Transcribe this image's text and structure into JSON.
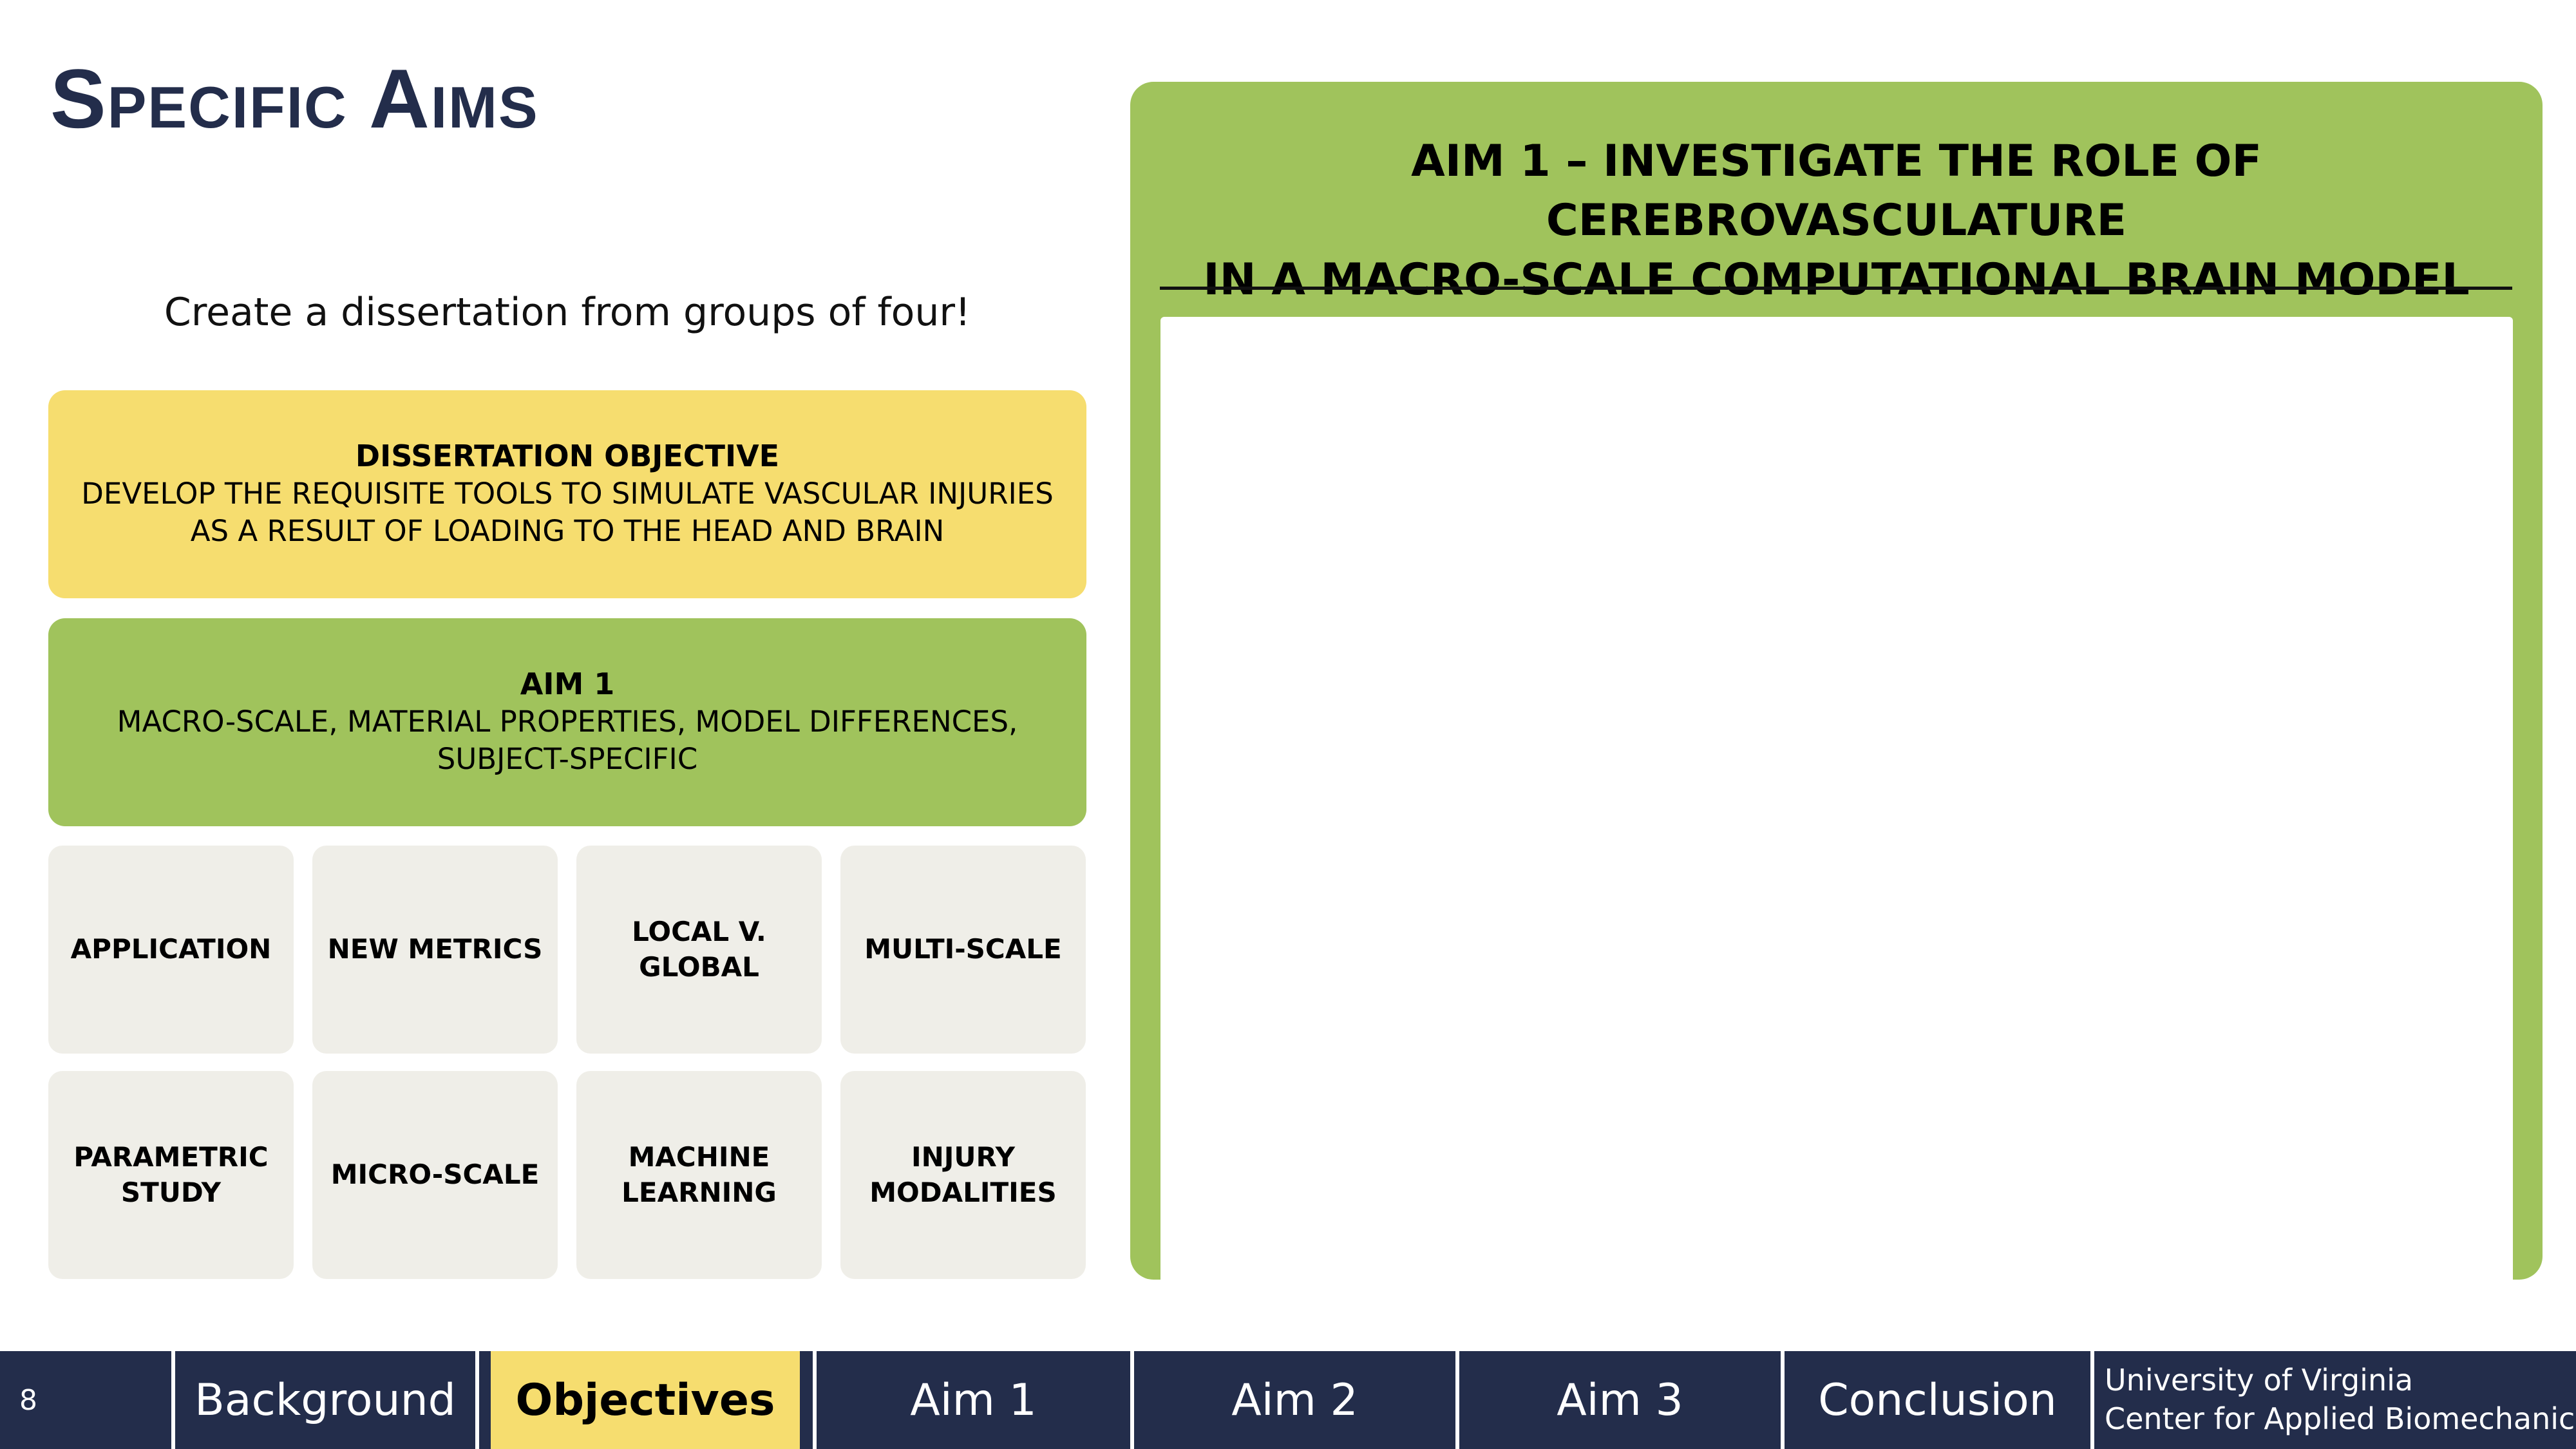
{
  "slide": {
    "title": "Specific Aims",
    "subtitle": "Create a dissertation from groups of four!"
  },
  "objective": {
    "heading": "DISSERTATION OBJECTIVE",
    "text": "DEVELOP THE REQUISITE TOOLS TO SIMULATE VASCULAR INJURIES AS A RESULT OF LOADING TO THE HEAD AND BRAIN"
  },
  "aim_box": {
    "heading": "AIM 1",
    "text": "MACRO-SCALE, MATERIAL PROPERTIES, MODEL DIFFERENCES, SUBJECT-SPECIFIC"
  },
  "tiles": [
    "APPLICATION",
    "NEW METRICS",
    "LOCAL V. GLOBAL",
    "MULTI-SCALE",
    "PARAMETRIC STUDY",
    "MICRO-SCALE",
    "MACHINE LEARNING",
    "INJURY MODALITIES"
  ],
  "panel": {
    "title_line1": "AIM 1 – INVESTIGATE THE ROLE OF CEREBROVASCULATURE",
    "title_line2": "IN A MACRO-SCALE COMPUTATIONAL BRAIN MODEL"
  },
  "navbar": {
    "slide_number": "8",
    "items": [
      "Background",
      "Objectives",
      "Aim 1",
      "Aim 2",
      "Aim 3",
      "Conclusion"
    ],
    "active": "Objectives",
    "org_line1": "University of Virginia",
    "org_line2": "Center for Applied Biomechanics"
  },
  "colors": {
    "navy": "#232d4b",
    "yellow": "#f6dd6f",
    "green": "#a0c35c",
    "tile_gray": "#efeee8"
  }
}
